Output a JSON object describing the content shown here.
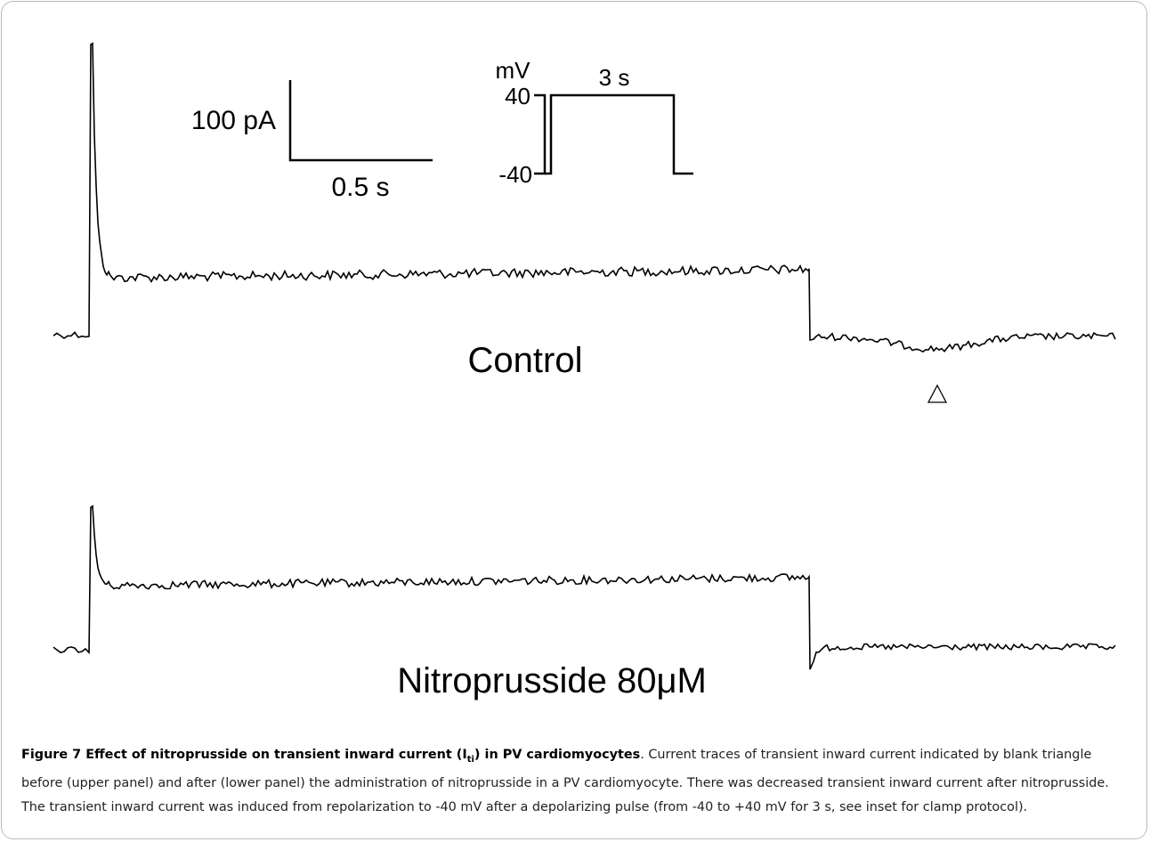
{
  "figure": {
    "scale_bar": {
      "current": "100 pA",
      "time": "0.5 s"
    },
    "protocol": {
      "unit": "mV",
      "high": "40",
      "low": "-40",
      "duration": "3 s"
    },
    "panels": [
      {
        "label": "Control"
      },
      {
        "label": "Nitroprusside 80μM"
      }
    ],
    "caption": {
      "title_before": "Figure 7 Effect of nitroprusside on transient inward current (I",
      "title_sub": "ti",
      "title_after": ") in PV cardiomyocytes",
      "text": ". Current traces of transient inward current indicated by blank triangle before (upper panel) and after (lower panel) the administration of nitroprusside in a PV cardiomyocyte. There was decreased transient inward current after nitroprusside. The transient inward current was induced from repolarization to -40 mV after a depolarizing pulse (from -40 to +40 mV for 3 s, see inset for clamp protocol)."
    }
  }
}
